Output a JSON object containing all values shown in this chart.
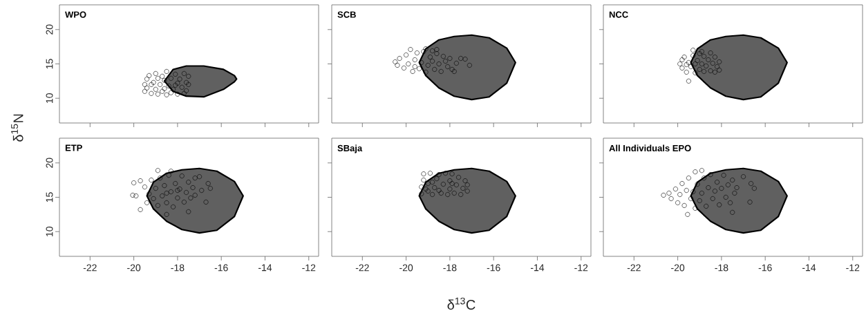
{
  "chart_data": [
    {
      "type": "scatter",
      "title": "WPO",
      "ylabel": "δ$^{15}$N",
      "xlim": [
        -23.4,
        -11.55
      ],
      "ylim": [
        6.4,
        23.6
      ],
      "xticks": [
        -22,
        -20,
        -18,
        -16,
        -14,
        -12
      ],
      "yticks": [
        10,
        15,
        20
      ],
      "tick_labels": "y",
      "series": [
        {
          "type": "area",
          "color": "#606060",
          "x": [
            -18.6,
            -18.2,
            -17.6,
            -16.8,
            -15.9,
            -15.4,
            -15.3,
            -15.4,
            -15.9,
            -16.8,
            -17.6,
            -18.2
          ],
          "values": [
            12.5,
            14.2,
            14.7,
            14.7,
            14.2,
            13.3,
            12.8,
            12.4,
            11.3,
            10.2,
            10.3,
            11.0
          ]
        },
        {
          "color": "#000000",
          "marker": "circle",
          "x": [
            -19.5,
            -19.5,
            -19.4,
            -19.4,
            -19.3,
            -19.2,
            -19.1,
            -19.0,
            -19.0,
            -18.9,
            -18.8,
            -18.7,
            -18.7,
            -18.6,
            -18.5,
            -18.5,
            -18.4,
            -18.3,
            -18.2,
            -18.1,
            -18.0,
            -18.0,
            -17.9,
            -17.8,
            -17.7,
            -17.7,
            -17.6,
            -17.5,
            -17.6,
            -17.5,
            -18.9,
            -19.2,
            -18.3,
            -18.6,
            -18.1
          ],
          "values": [
            11.0,
            12.0,
            12.8,
            11.5,
            13.3,
            10.7,
            12.3,
            13.6,
            11.3,
            10.6,
            12.0,
            13.2,
            11.0,
            12.6,
            13.9,
            10.5,
            11.8,
            12.9,
            11.3,
            13.5,
            10.6,
            12.2,
            12.8,
            11.6,
            13.6,
            10.7,
            12.3,
            13.2,
            11.1,
            12.0,
            12.9,
            12.0,
            10.8,
            11.4,
            11.9
          ]
        }
      ]
    },
    {
      "type": "scatter",
      "title": "SCB",
      "xlim": [
        -23.4,
        -11.55
      ],
      "ylim": [
        6.4,
        23.6
      ],
      "xticks": [
        -22,
        -20,
        -18,
        -16,
        -14,
        -12
      ],
      "yticks": [
        10,
        15,
        20
      ],
      "tick_labels": false,
      "series": [
        {
          "type": "area",
          "color": "#606060",
          "x": [
            -19.4,
            -19.1,
            -18.5,
            -17.8,
            -17.0,
            -16.2,
            -15.4,
            -15.0,
            -15.4,
            -16.2,
            -17.0,
            -17.8,
            -18.5,
            -19.1
          ],
          "values": [
            15.2,
            17.2,
            18.5,
            19.0,
            19.2,
            18.8,
            17.3,
            15.2,
            12.2,
            10.2,
            9.8,
            10.3,
            11.5,
            13.3
          ]
        },
        {
          "color": "#000000",
          "marker": "circle",
          "x": [
            -20.5,
            -20.4,
            -20.3,
            -20.1,
            -20.0,
            -19.9,
            -19.8,
            -19.7,
            -19.6,
            -19.5,
            -19.4,
            -19.3,
            -19.2,
            -19.1,
            -19.1,
            -19.0,
            -18.9,
            -18.8,
            -18.7,
            -18.6,
            -18.5,
            -18.4,
            -18.3,
            -18.2,
            -18.1,
            -18.0,
            -17.9,
            -17.8,
            -17.7,
            -17.5,
            -17.3,
            -17.1,
            -18.6,
            -19.6,
            -18.8
          ],
          "values": [
            15.3,
            14.8,
            15.8,
            14.4,
            16.3,
            15.0,
            17.1,
            13.9,
            15.6,
            16.6,
            14.3,
            15.2,
            16.8,
            17.2,
            13.8,
            14.8,
            16.0,
            15.4,
            14.2,
            16.5,
            15.0,
            13.9,
            16.1,
            15.4,
            14.6,
            15.8,
            14.2,
            13.9,
            15.1,
            15.8,
            15.7,
            14.8,
            17.1,
            14.6,
            16.9
          ]
        }
      ]
    },
    {
      "type": "scatter",
      "title": "NCC",
      "xlim": [
        -23.4,
        -11.55
      ],
      "ylim": [
        6.4,
        23.6
      ],
      "xticks": [
        -22,
        -20,
        -18,
        -16,
        -14,
        -12
      ],
      "yticks": [
        10,
        15,
        20
      ],
      "tick_labels": false,
      "series": [
        {
          "type": "area",
          "color": "#606060",
          "x": [
            -19.4,
            -19.1,
            -18.5,
            -17.8,
            -17.0,
            -16.2,
            -15.4,
            -15.0,
            -15.4,
            -16.2,
            -17.0,
            -17.8,
            -18.5,
            -19.1
          ],
          "values": [
            15.2,
            17.2,
            18.5,
            19.0,
            19.2,
            18.8,
            17.3,
            15.2,
            12.2,
            10.2,
            9.8,
            10.3,
            11.5,
            13.3
          ]
        },
        {
          "color": "#000000",
          "marker": "circle",
          "x": [
            -19.9,
            -19.8,
            -19.8,
            -19.7,
            -19.6,
            -19.5,
            -19.5,
            -19.4,
            -19.3,
            -19.3,
            -19.2,
            -19.1,
            -19.0,
            -19.0,
            -18.9,
            -18.8,
            -18.8,
            -18.7,
            -18.6,
            -18.5,
            -18.5,
            -18.4,
            -18.3,
            -18.3,
            -18.2,
            -18.1,
            -18.1,
            -19.6,
            -18.9,
            -19.2
          ],
          "values": [
            15.0,
            14.4,
            15.6,
            16.0,
            13.8,
            12.5,
            15.2,
            14.6,
            17.0,
            16.2,
            13.7,
            15.5,
            14.2,
            16.5,
            15.0,
            13.9,
            16.1,
            14.7,
            15.6,
            16.6,
            14.0,
            15.1,
            13.8,
            16.0,
            14.6,
            15.3,
            14.1,
            14.9,
            16.8,
            15.0
          ]
        }
      ]
    },
    {
      "type": "scatter",
      "title": "ETP",
      "xlim": [
        -23.4,
        -11.55
      ],
      "ylim": [
        6.4,
        23.6
      ],
      "xticks": [
        -22,
        -20,
        -18,
        -16,
        -14,
        -12
      ],
      "yticks": [
        10,
        15,
        20
      ],
      "series": [
        {
          "type": "area",
          "color": "#606060",
          "x": [
            -19.4,
            -19.1,
            -18.5,
            -17.8,
            -17.0,
            -16.2,
            -15.4,
            -15.0,
            -15.4,
            -16.2,
            -17.0,
            -17.8,
            -18.5,
            -19.1
          ],
          "values": [
            15.2,
            17.2,
            18.5,
            19.0,
            19.2,
            18.8,
            17.3,
            15.2,
            12.2,
            10.2,
            9.8,
            10.3,
            11.5,
            13.3
          ]
        },
        {
          "color": "#000000",
          "marker": "circle",
          "x": [
            -20.0,
            -20.05,
            -19.9,
            -19.7,
            -19.7,
            -18.9,
            -18.3,
            -16.7,
            -16.6,
            -16.5,
            -17.0,
            -17.5,
            -18.5,
            -16.9,
            -19.5,
            -19.4,
            -19.3,
            -19.2,
            -19.1,
            -19.0,
            -18.9,
            -18.8,
            -18.7,
            -18.6,
            -18.5,
            -18.4,
            -18.3,
            -18.2,
            -18.1,
            -18.0,
            -17.9,
            -17.8,
            -17.7,
            -17.6,
            -17.5,
            -17.4,
            -17.3,
            -17.2,
            -17.2,
            -18.5,
            -18.0
          ],
          "values": [
            17.1,
            15.3,
            15.2,
            17.4,
            13.2,
            18.9,
            18.8,
            14.3,
            17.0,
            16.3,
            18.0,
            12.9,
            12.5,
            16.0,
            16.5,
            14.2,
            15.5,
            17.5,
            14.8,
            16.3,
            13.8,
            17.8,
            15.2,
            16.7,
            14.2,
            18.2,
            15.8,
            13.6,
            17.0,
            14.9,
            16.2,
            18.1,
            14.3,
            15.7,
            17.2,
            14.9,
            16.4,
            17.8,
            15.3,
            15.6,
            16.0
          ]
        }
      ]
    },
    {
      "type": "scatter",
      "title": "SBaja",
      "xlabel": "δ$^{13}$C",
      "xlim": [
        -23.4,
        -11.55
      ],
      "ylim": [
        6.4,
        23.6
      ],
      "xticks": [
        -22,
        -20,
        -18,
        -16,
        -14,
        -12
      ],
      "yticks": [
        10,
        15,
        20
      ],
      "tick_labels": "x",
      "series": [
        {
          "type": "area",
          "color": "#606060",
          "x": [
            -19.4,
            -19.1,
            -18.5,
            -17.8,
            -17.0,
            -16.2,
            -15.4,
            -15.0,
            -15.4,
            -16.2,
            -17.0,
            -17.8,
            -18.5,
            -19.1
          ],
          "values": [
            15.2,
            17.2,
            18.5,
            19.0,
            19.2,
            18.8,
            17.3,
            15.2,
            12.2,
            10.2,
            9.8,
            10.3,
            11.5,
            13.3
          ]
        },
        {
          "color": "#000000",
          "marker": "circle",
          "x": [
            -19.3,
            -19.3,
            -19.2,
            -19.2,
            -19.0,
            -19.0,
            -18.9,
            -18.8,
            -18.7,
            -18.6,
            -18.5,
            -18.4,
            -18.3,
            -18.2,
            -18.1,
            -18.0,
            -18.0,
            -17.9,
            -17.8,
            -17.7,
            -17.6,
            -17.5,
            -17.4,
            -17.3,
            -17.2,
            -17.2,
            -18.8,
            -19.1,
            -18.5,
            -17.9
          ],
          "values": [
            15.5,
            16.5,
            17.5,
            18.4,
            15.9,
            17.0,
            18.5,
            15.4,
            16.4,
            17.7,
            18.3,
            15.6,
            16.9,
            18.5,
            15.4,
            16.2,
            17.4,
            18.4,
            15.6,
            16.8,
            17.9,
            15.4,
            16.3,
            17.4,
            15.9,
            16.8,
            17.2,
            16.2,
            16.0,
            17.0
          ]
        }
      ]
    },
    {
      "type": "scatter",
      "title": "All Individuals EPO",
      "xlim": [
        -23.4,
        -11.55
      ],
      "ylim": [
        6.4,
        23.6
      ],
      "xticks": [
        -22,
        -20,
        -18,
        -16,
        -14,
        -12
      ],
      "yticks": [
        10,
        15,
        20
      ],
      "tick_labels": "x",
      "series": [
        {
          "type": "area",
          "color": "#606060",
          "x": [
            -19.4,
            -19.1,
            -18.5,
            -17.8,
            -17.0,
            -16.2,
            -15.4,
            -15.0,
            -15.4,
            -16.2,
            -17.0,
            -17.8,
            -18.5,
            -19.1
          ],
          "values": [
            15.2,
            17.2,
            18.5,
            19.0,
            19.2,
            18.8,
            17.3,
            15.2,
            12.2,
            10.2,
            9.8,
            10.3,
            11.5,
            13.3
          ]
        },
        {
          "color": "#000000",
          "marker": "circle",
          "x": [
            -20.65,
            -19.55,
            -16.65,
            -16.5,
            -16.7,
            -17.5,
            -17.0,
            -19.2,
            -18.9,
            -20.4,
            -20.3,
            -20.1,
            -20.0,
            -19.9,
            -19.8,
            -19.7,
            -19.6,
            -19.5,
            -19.4,
            -19.3,
            -19.2,
            -19.1,
            -19.0,
            -18.9,
            -18.8,
            -18.7,
            -18.6,
            -18.5,
            -18.4,
            -18.3,
            -18.2,
            -18.1,
            -18.0,
            -17.9,
            -17.8,
            -17.7,
            -17.6,
            -17.5,
            -17.4,
            -17.3
          ],
          "values": [
            15.3,
            12.5,
            17.0,
            16.3,
            14.3,
            12.8,
            18.0,
            18.7,
            18.9,
            15.6,
            14.8,
            16.2,
            14.2,
            15.4,
            17.0,
            13.8,
            16.0,
            17.8,
            14.8,
            15.8,
            13.4,
            16.9,
            14.5,
            15.6,
            17.8,
            13.7,
            16.4,
            18.3,
            14.8,
            15.9,
            17.2,
            13.9,
            16.3,
            18.2,
            15.0,
            16.8,
            14.2,
            17.5,
            15.6,
            16.4
          ]
        }
      ]
    }
  ]
}
